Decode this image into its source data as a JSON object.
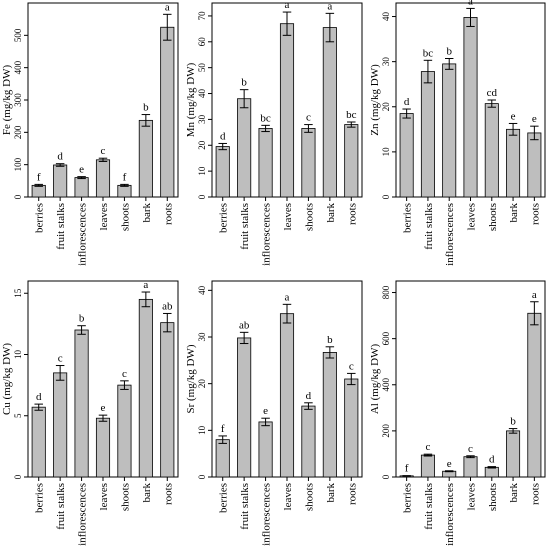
{
  "chart_data": [
    {
      "type": "bar",
      "ylabel": "Fe (mg/kg DW)",
      "categories": [
        "berries",
        "fruit stalks",
        "inflorescences",
        "leaves",
        "shoots",
        "bark",
        "roots"
      ],
      "values": [
        36,
        99,
        60,
        115,
        36,
        237,
        525
      ],
      "errors": [
        3,
        4,
        3,
        5,
        3,
        18,
        40
      ],
      "letters": [
        "f",
        "d",
        "e",
        "c",
        "f",
        "b",
        "a"
      ],
      "ylim": [
        0,
        600
      ],
      "yticks": [
        0,
        100,
        200,
        300,
        400,
        500
      ],
      "bar_color": "#bebebe"
    },
    {
      "type": "bar",
      "ylabel": "Mn (mg/kg DW)",
      "categories": [
        "berries",
        "fruit stalks",
        "inflorescences",
        "leaves",
        "shoots",
        "bark",
        "roots"
      ],
      "values": [
        19.5,
        38,
        26.5,
        67,
        26.5,
        65.5,
        28
      ],
      "errors": [
        1.2,
        3.5,
        1.2,
        4.5,
        1.5,
        5.5,
        1
      ],
      "letters": [
        "d",
        "b",
        "bc",
        "a",
        "c",
        "a",
        "bc"
      ],
      "ylim": [
        0,
        75
      ],
      "yticks": [
        0,
        10,
        20,
        30,
        40,
        50,
        60,
        70
      ],
      "bar_color": "#bebebe"
    },
    {
      "type": "bar",
      "ylabel": "Zn (mg/kg DW)",
      "categories": [
        "berries",
        "fruit stalks",
        "inflorescences",
        "leaves",
        "shoots",
        "bark",
        "roots"
      ],
      "values": [
        18.5,
        27.8,
        29.5,
        39.8,
        20.7,
        15,
        14.2
      ],
      "errors": [
        1,
        2.5,
        1.2,
        2,
        0.8,
        1.3,
        1.5
      ],
      "letters": [
        "d",
        "bc",
        "b",
        "a",
        "cd",
        "e",
        "e"
      ],
      "ylim": [
        0,
        43
      ],
      "yticks": [
        0,
        10,
        20,
        30,
        40
      ],
      "bar_color": "#bebebe"
    },
    {
      "type": "bar",
      "ylabel": "Cu (mg/kg DW)",
      "categories": [
        "berries",
        "fruit stalks",
        "inflorescences",
        "leaves",
        "shoots",
        "bark",
        "roots"
      ],
      "values": [
        5.7,
        8.5,
        12,
        4.8,
        7.5,
        14.5,
        12.6
      ],
      "errors": [
        0.25,
        0.6,
        0.35,
        0.25,
        0.35,
        0.6,
        0.75
      ],
      "letters": [
        "d",
        "c",
        "b",
        "e",
        "c",
        "a",
        "ab"
      ],
      "ylim": [
        0,
        16
      ],
      "yticks": [
        0,
        5,
        10,
        15
      ],
      "bar_color": "#bebebe"
    },
    {
      "type": "bar",
      "ylabel": "Sr (mg/kg DW)",
      "categories": [
        "berries",
        "fruit stalks",
        "inflorescences",
        "leaves",
        "shoots",
        "bark",
        "roots"
      ],
      "values": [
        8,
        29.8,
        11.8,
        35,
        15.2,
        26.7,
        21
      ],
      "errors": [
        0.8,
        1.2,
        0.8,
        2,
        0.7,
        1.2,
        1.2
      ],
      "letters": [
        "f",
        "ab",
        "e",
        "a",
        "d",
        "b",
        "c"
      ],
      "ylim": [
        0,
        42
      ],
      "yticks": [
        0,
        10,
        20,
        30,
        40
      ],
      "bar_color": "#bebebe"
    },
    {
      "type": "bar",
      "ylabel": "Al (mg/kg DW)",
      "categories": [
        "berries",
        "fruit stalks",
        "inflorescences",
        "leaves",
        "shoots",
        "bark",
        "roots"
      ],
      "values": [
        5,
        95,
        25,
        88,
        42,
        200,
        710
      ],
      "errors": [
        1,
        4,
        2,
        4,
        3,
        10,
        50
      ],
      "letters": [
        "f",
        "c",
        "e",
        "c",
        "d",
        "b",
        "a"
      ],
      "ylim": [
        0,
        850
      ],
      "yticks": [
        0,
        200,
        400,
        600,
        800
      ],
      "bar_color": "#bebebe"
    }
  ]
}
